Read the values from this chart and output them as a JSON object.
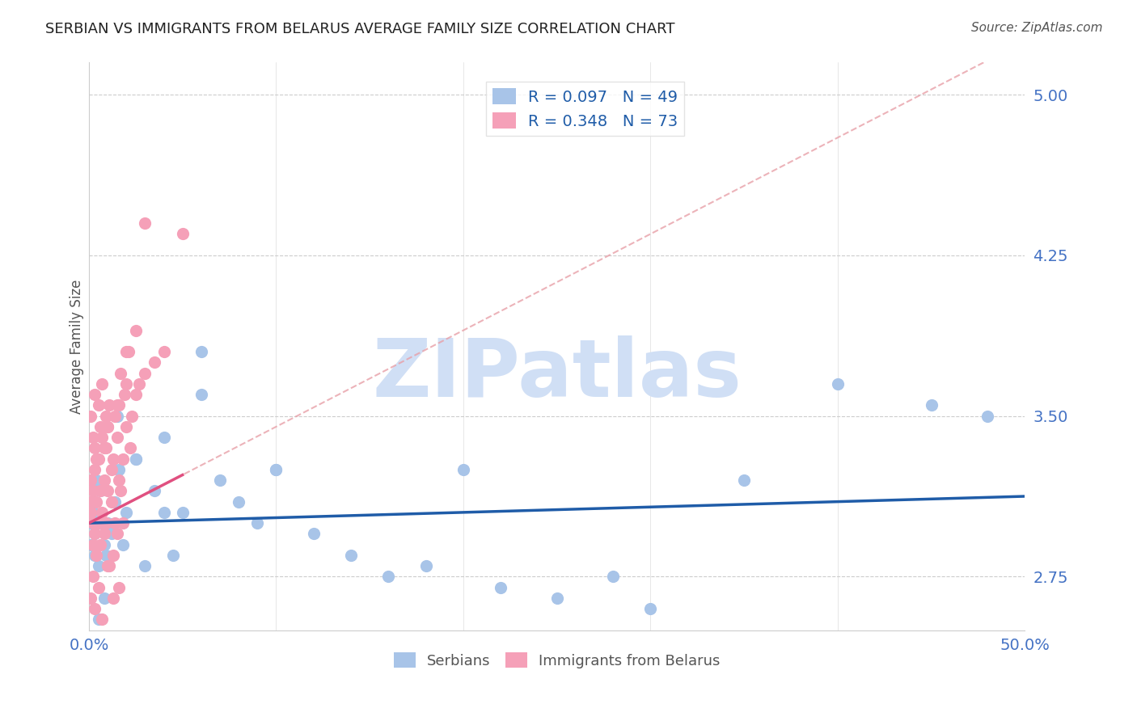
{
  "title": "SERBIAN VS IMMIGRANTS FROM BELARUS AVERAGE FAMILY SIZE CORRELATION CHART",
  "source": "Source: ZipAtlas.com",
  "xlabel": "",
  "ylabel": "Average Family Size",
  "xlim": [
    0,
    0.5
  ],
  "ylim": [
    2.5,
    5.15
  ],
  "yticks": [
    2.75,
    3.5,
    4.25,
    5.0
  ],
  "xticks": [
    0.0,
    0.1,
    0.2,
    0.3,
    0.4,
    0.5
  ],
  "xtick_labels": [
    "0.0%",
    "",
    "",
    "",
    "",
    "50.0%"
  ],
  "title_color": "#222222",
  "source_color": "#555555",
  "ylabel_color": "#555555",
  "ytick_color": "#4472c4",
  "xtick_color": "#4472c4",
  "watermark": "ZIPatlas",
  "watermark_color": "#d0dff5",
  "legend_r1": "R = 0.097",
  "legend_n1": "N = 49",
  "legend_r2": "R = 0.348",
  "legend_n2": "N = 73",
  "legend_label1": "Serbians",
  "legend_label2": "Immigrants from Belarus",
  "series1_color": "#a8c4e8",
  "series2_color": "#f5a0b8",
  "trendline1_color": "#1f5ca8",
  "trendline2_color": "#e05080",
  "trendline_dashed_color": "#e8a0a8",
  "serbian_x": [
    0.002,
    0.001,
    0.003,
    0.001,
    0.002,
    0.003,
    0.004,
    0.005,
    0.006,
    0.007,
    0.008,
    0.009,
    0.01,
    0.012,
    0.014,
    0.016,
    0.018,
    0.02,
    0.025,
    0.03,
    0.035,
    0.04,
    0.045,
    0.05,
    0.06,
    0.07,
    0.08,
    0.09,
    0.1,
    0.12,
    0.14,
    0.16,
    0.18,
    0.2,
    0.22,
    0.25,
    0.28,
    0.3,
    0.35,
    0.4,
    0.45,
    0.48,
    0.005,
    0.008,
    0.015,
    0.025,
    0.04,
    0.06,
    0.1
  ],
  "serbian_y": [
    3.1,
    3.0,
    2.95,
    2.9,
    3.05,
    2.85,
    3.2,
    2.8,
    3.15,
    3.0,
    2.9,
    2.85,
    3.0,
    2.95,
    3.1,
    3.25,
    2.9,
    3.05,
    3.3,
    2.8,
    3.15,
    3.4,
    2.85,
    3.05,
    3.8,
    3.2,
    3.1,
    3.0,
    3.25,
    2.95,
    2.85,
    2.75,
    2.8,
    3.25,
    2.7,
    2.65,
    2.75,
    2.6,
    3.2,
    3.65,
    3.55,
    3.5,
    2.55,
    2.65,
    3.5,
    3.3,
    3.05,
    3.6,
    3.25
  ],
  "belarus_x": [
    0.001,
    0.001,
    0.001,
    0.002,
    0.002,
    0.002,
    0.003,
    0.003,
    0.003,
    0.004,
    0.004,
    0.005,
    0.005,
    0.006,
    0.006,
    0.007,
    0.007,
    0.008,
    0.008,
    0.009,
    0.009,
    0.01,
    0.01,
    0.011,
    0.011,
    0.012,
    0.012,
    0.013,
    0.013,
    0.014,
    0.014,
    0.015,
    0.015,
    0.016,
    0.016,
    0.017,
    0.017,
    0.018,
    0.018,
    0.019,
    0.02,
    0.021,
    0.022,
    0.023,
    0.025,
    0.027,
    0.03,
    0.035,
    0.04,
    0.05,
    0.001,
    0.002,
    0.003,
    0.005,
    0.007,
    0.01,
    0.013,
    0.016,
    0.02,
    0.025,
    0.001,
    0.002,
    0.003,
    0.004,
    0.005,
    0.006,
    0.007,
    0.008,
    0.009,
    0.01,
    0.015,
    0.02,
    0.03
  ],
  "belarus_y": [
    3.1,
    3.2,
    3.05,
    2.9,
    3.15,
    3.0,
    3.25,
    2.95,
    3.35,
    3.1,
    2.85,
    3.3,
    3.0,
    3.15,
    2.9,
    3.4,
    3.05,
    3.2,
    2.95,
    3.35,
    3.0,
    3.45,
    3.15,
    2.8,
    3.55,
    3.25,
    3.1,
    3.3,
    2.85,
    3.5,
    3.0,
    3.4,
    2.95,
    3.2,
    3.55,
    3.15,
    3.7,
    3.3,
    3.0,
    3.6,
    3.45,
    3.8,
    3.35,
    3.5,
    3.6,
    3.65,
    3.7,
    3.75,
    3.8,
    4.35,
    2.65,
    2.75,
    2.6,
    2.7,
    2.55,
    2.8,
    2.65,
    2.7,
    3.8,
    3.9,
    3.5,
    3.4,
    3.6,
    3.3,
    3.55,
    3.45,
    3.65,
    3.35,
    3.5,
    3.45,
    3.55,
    3.65,
    4.4
  ]
}
